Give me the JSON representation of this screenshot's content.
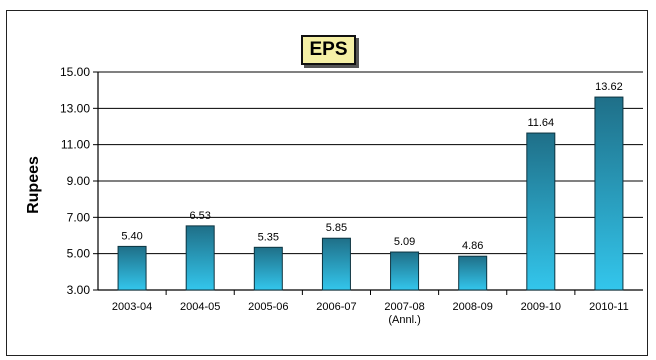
{
  "chart_data": {
    "type": "bar",
    "title": "EPS",
    "ylabel": "Rupees",
    "xlabel": "",
    "ylim": [
      3.0,
      15.0
    ],
    "yticks": [
      "3.00",
      "5.00",
      "7.00",
      "9.00",
      "11.00",
      "13.00",
      "15.00"
    ],
    "categories": [
      "2003-04",
      "2004-05",
      "2005-06",
      "2006-07",
      "2007-08",
      "2008-09",
      "2009-10",
      "2010-11"
    ],
    "category_sublabels": [
      "",
      "",
      "",
      "",
      "(Annl.)",
      "",
      "",
      ""
    ],
    "values": [
      5.4,
      6.53,
      5.35,
      5.85,
      5.09,
      4.86,
      11.64,
      13.62
    ],
    "data_labels": [
      "5.40",
      "6.53",
      "5.35",
      "5.85",
      "5.09",
      "4.86",
      "11.64",
      "13.62"
    ],
    "grid": true,
    "legend": "none",
    "colors": {
      "bar_top": "#1f6f88",
      "bar_bottom": "#33c6ec",
      "bar_edge": "#0d3440"
    }
  }
}
